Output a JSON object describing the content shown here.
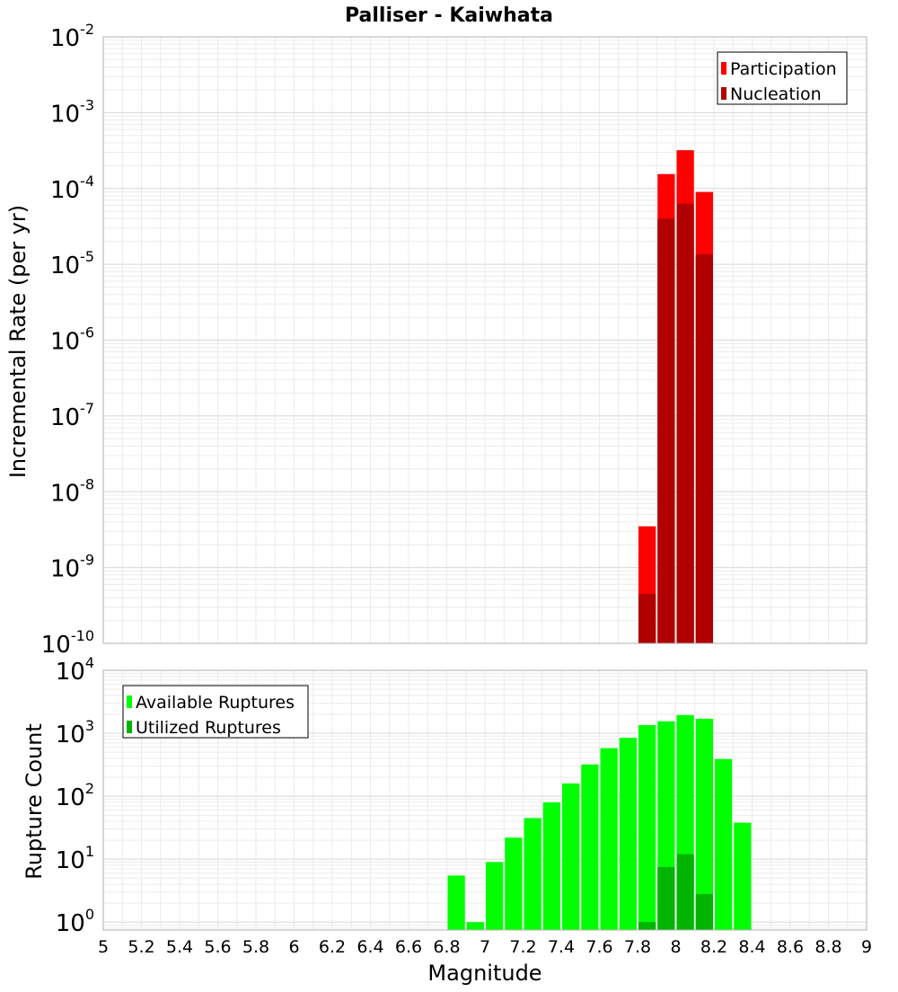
{
  "chart_data": [
    {
      "type": "bar",
      "title": "Palliser - Kaiwhata",
      "ylabel": "Incremental Rate (per yr)",
      "yscale": "log",
      "ylim": [
        1e-10,
        0.01
      ],
      "xlim": [
        5,
        9
      ],
      "bin_width": 0.1,
      "grid": true,
      "legend_position": "top-right",
      "y_ticks": [
        {
          "base": "10",
          "exp": "-10"
        },
        {
          "base": "10",
          "exp": "-9"
        },
        {
          "base": "10",
          "exp": "-8"
        },
        {
          "base": "10",
          "exp": "-7"
        },
        {
          "base": "10",
          "exp": "-6"
        },
        {
          "base": "10",
          "exp": "-5"
        },
        {
          "base": "10",
          "exp": "-4"
        },
        {
          "base": "10",
          "exp": "-3"
        },
        {
          "base": "10",
          "exp": "-2"
        }
      ],
      "series": [
        {
          "name": "Participation",
          "color": "#ff0000",
          "x": [
            7.85,
            7.95,
            8.05,
            8.15
          ],
          "values": [
            3.5e-09,
            0.000155,
            0.00032,
            9e-05
          ]
        },
        {
          "name": "Nucleation",
          "color": "#b00000",
          "x": [
            7.85,
            7.95,
            8.05,
            8.15
          ],
          "values": [
            4.5e-10,
            4e-05,
            6.3e-05,
            1.35e-05
          ]
        }
      ]
    },
    {
      "type": "bar",
      "ylabel": "Rupture Count",
      "xlabel": "Magnitude",
      "yscale": "log",
      "ylim": [
        0.75,
        10000
      ],
      "xlim": [
        5,
        9
      ],
      "bin_width": 0.1,
      "grid": true,
      "legend_position": "top-left",
      "y_ticks": [
        {
          "base": "10",
          "exp": "0"
        },
        {
          "base": "10",
          "exp": "1"
        },
        {
          "base": "10",
          "exp": "2"
        },
        {
          "base": "10",
          "exp": "3"
        },
        {
          "base": "10",
          "exp": "4"
        }
      ],
      "x_ticks": [
        "5",
        "5.2",
        "5.4",
        "5.6",
        "5.8",
        "6",
        "6.2",
        "6.4",
        "6.6",
        "6.8",
        "7",
        "7.2",
        "7.4",
        "7.6",
        "7.8",
        "8",
        "8.2",
        "8.4",
        "8.6",
        "8.8",
        "9"
      ],
      "series": [
        {
          "name": "Available Ruptures",
          "color": "#00ff00",
          "x": [
            6.85,
            6.95,
            7.05,
            7.15,
            7.25,
            7.35,
            7.45,
            7.55,
            7.65,
            7.75,
            7.85,
            7.95,
            8.05,
            8.15,
            8.25,
            8.35
          ],
          "values": [
            5.5,
            1,
            9,
            22,
            45,
            80,
            160,
            320,
            580,
            850,
            1350,
            1550,
            1950,
            1700,
            390,
            38
          ]
        },
        {
          "name": "Utilized Ruptures",
          "color": "#00b400",
          "x": [
            7.85,
            7.95,
            8.05,
            8.15
          ],
          "values": [
            1,
            7.5,
            12,
            2.8
          ]
        }
      ]
    }
  ]
}
